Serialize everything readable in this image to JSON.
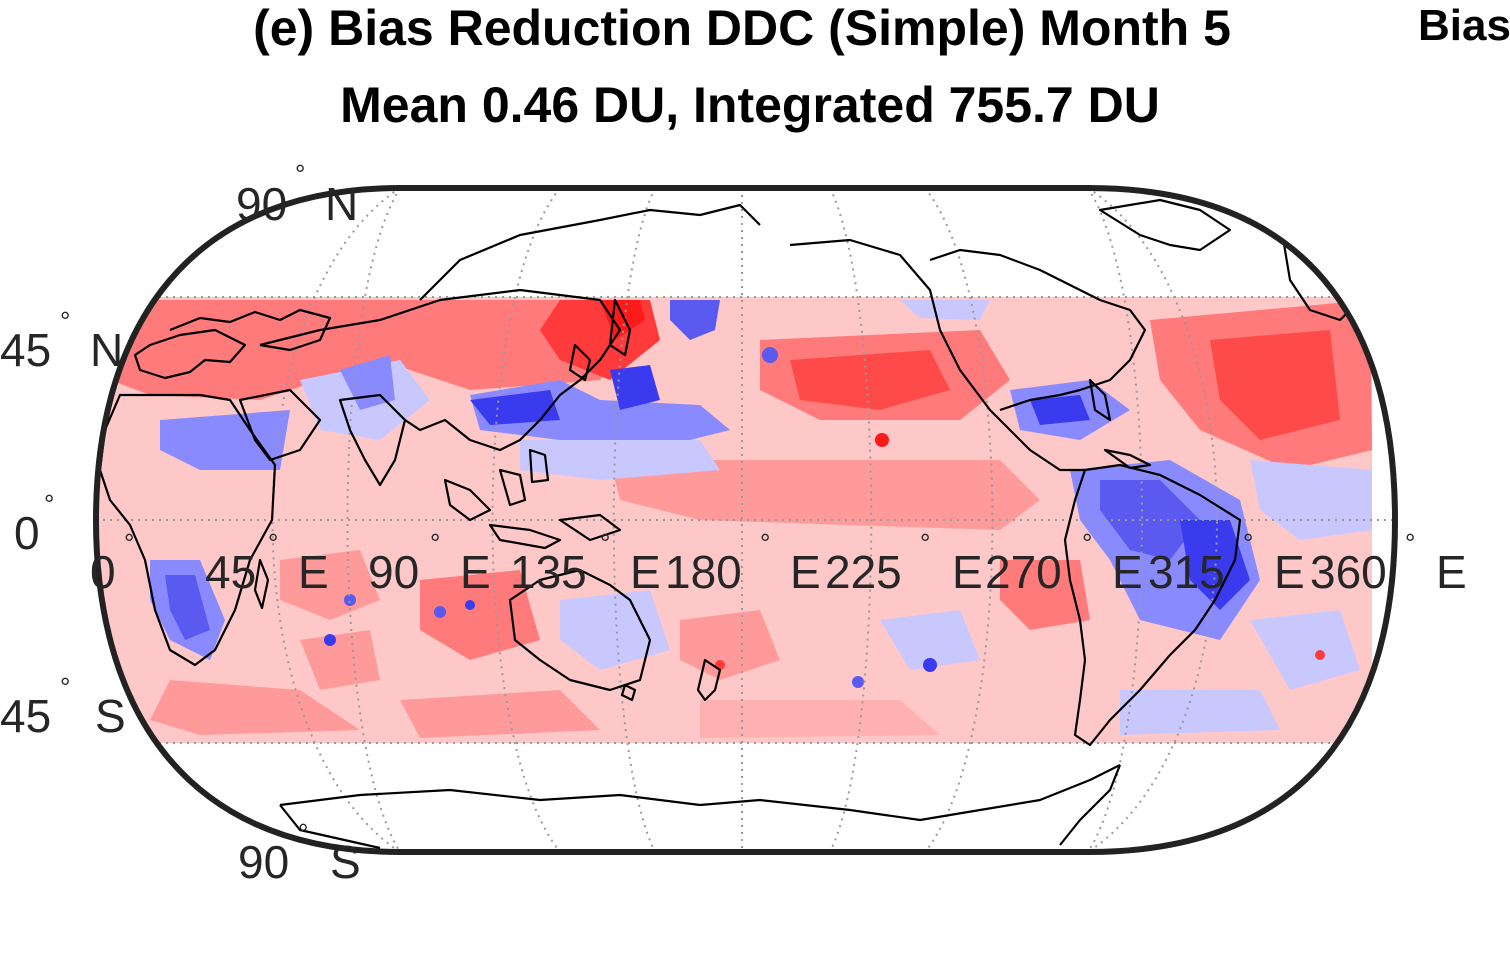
{
  "figure": {
    "title_line1": "(e) Bias Reduction DDC (Simple) Month 5",
    "title_line2": "Mean 0.46 DU, Integrated 755.7 DU",
    "next_panel_title_fragment": "Bias"
  },
  "map": {
    "projection": "pseudocylindrical (Robinson-like), 0–360°E",
    "data_lat_extent": [
      -50,
      50
    ],
    "graticule_lon_step": 45,
    "graticule_lat_step": 45,
    "graticule_style": "dotted gray",
    "coastlines": "black",
    "colormap": {
      "strong_positive": "#ff2222",
      "positive": "#ff7a7a",
      "weak_positive": "#ffc8c8",
      "weak_negative": "#c8c8ff",
      "negative": "#8a8aff",
      "strong_negative": "#3a3aee"
    },
    "lat_labels": [
      {
        "value": "90",
        "suffix": "N"
      },
      {
        "value": "45",
        "suffix": "N"
      },
      {
        "value": "0",
        "suffix": ""
      },
      {
        "value": "45",
        "suffix": "S"
      },
      {
        "value": "90",
        "suffix": "S"
      }
    ],
    "lon_labels": [
      {
        "value": "0",
        "suffix": ""
      },
      {
        "value": "45",
        "suffix": "E"
      },
      {
        "value": "90",
        "suffix": "E"
      },
      {
        "value": "135",
        "suffix": "E"
      },
      {
        "value": "180",
        "suffix": "E"
      },
      {
        "value": "225",
        "suffix": "E"
      },
      {
        "value": "270",
        "suffix": "E"
      },
      {
        "value": "315",
        "suffix": "E"
      },
      {
        "value": "360",
        "suffix": "E"
      }
    ]
  }
}
